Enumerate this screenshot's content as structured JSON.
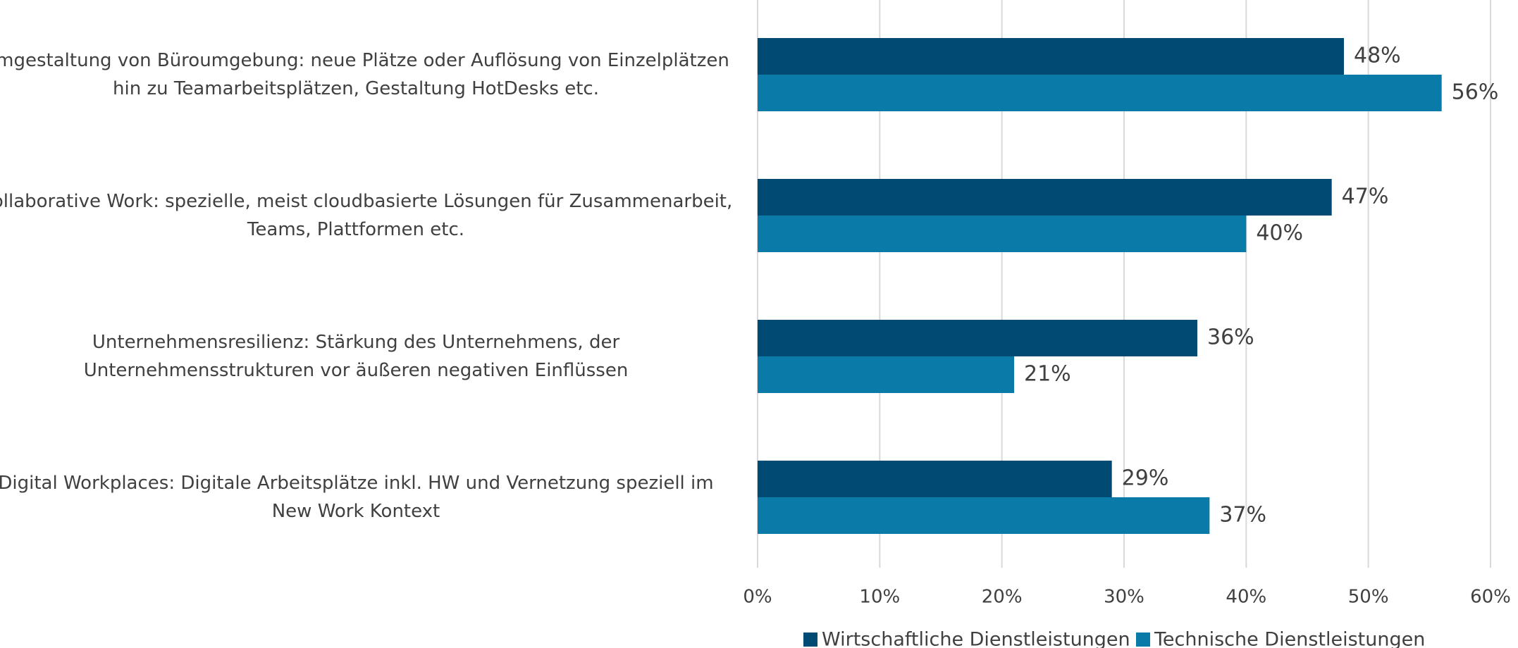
{
  "chart_data": {
    "type": "bar",
    "orientation": "horizontal",
    "categories": [
      "Umgestaltung von Büroumgebung: neue Plätze oder Auflösung von Einzelplätzen\nhin zu Teamarbeitsplätzen, Gestaltung HotDesks etc.",
      "Collaborative Work: spezielle, meist cloudbasierte Lösungen für Zusammenarbeit,\nTeams, Plattformen etc.",
      "Unternehmensresilienz: Stärkung des Unternehmens, der\nUnternehmensstrukturen vor äußeren negativen Einflüssen",
      "Digital Workplaces: Digitale Arbeitsplätze inkl. HW und Vernetzung speziell im\nNew Work Kontext"
    ],
    "series": [
      {
        "name": "Wirtschaftliche Dienstleistungen",
        "color": "#004a73",
        "values": [
          48,
          47,
          36,
          29
        ],
        "value_labels": [
          "48%",
          "47%",
          "36%",
          "29%"
        ]
      },
      {
        "name": "Technische Dienstleistungen",
        "color": "#0a7aa8",
        "values": [
          56,
          40,
          21,
          37
        ],
        "value_labels": [
          "56%",
          "40%",
          "21%",
          "37%"
        ]
      }
    ],
    "xlim": [
      0,
      60
    ],
    "xticks": [
      {
        "value": 0,
        "label": "0%"
      },
      {
        "value": 10,
        "label": "10%"
      },
      {
        "value": 20,
        "label": "20%"
      },
      {
        "value": 30,
        "label": "30%"
      },
      {
        "value": 40,
        "label": "40%"
      },
      {
        "value": 50,
        "label": "50%"
      },
      {
        "value": 60,
        "label": "60%"
      }
    ],
    "grid": true,
    "legend": "bottom"
  }
}
